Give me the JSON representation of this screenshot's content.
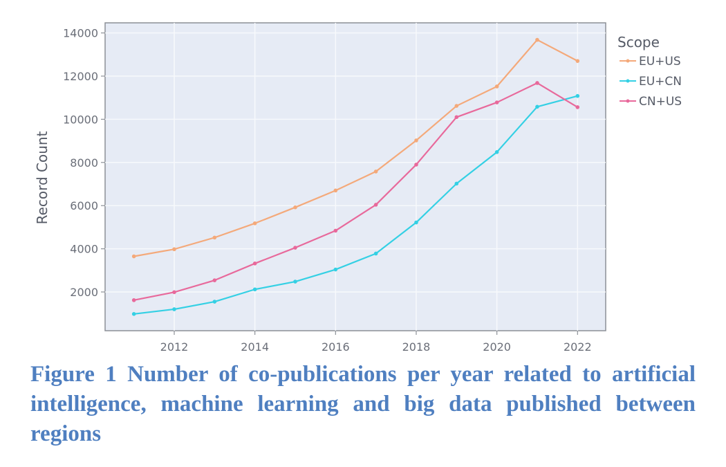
{
  "chart_data": {
    "type": "line",
    "title": "",
    "xlabel": "",
    "ylabel": "Record Count",
    "x": [
      2011,
      2012,
      2013,
      2014,
      2015,
      2016,
      2017,
      2018,
      2019,
      2020,
      2021,
      2022
    ],
    "xticks": [
      2012,
      2014,
      2016,
      2018,
      2020,
      2022
    ],
    "yticks": [
      2000,
      4000,
      6000,
      8000,
      10000,
      12000,
      14000
    ],
    "xlim": [
      2010.6,
      2022.7
    ],
    "ylim": [
      200,
      14550
    ],
    "grid": true,
    "legend": {
      "title": "Scope",
      "position": "right-top"
    },
    "series": [
      {
        "name": "EU+US",
        "color": "#f4a97a",
        "values": [
          3650,
          3980,
          4520,
          5180,
          5920,
          6700,
          7580,
          9020,
          10620,
          11520,
          13680,
          12700
        ]
      },
      {
        "name": "EU+CN",
        "color": "#34d0e4",
        "values": [
          980,
          1200,
          1550,
          2120,
          2480,
          3040,
          3780,
          5220,
          7020,
          8480,
          10580,
          11080
        ]
      },
      {
        "name": "CN+US",
        "color": "#e8699b",
        "values": [
          1620,
          1990,
          2540,
          3320,
          4050,
          4840,
          6040,
          7900,
          10100,
          10780,
          11680,
          10560
        ]
      }
    ]
  },
  "caption": "Figure 1 Number of co-publications per year related to artificial intelligence, machine learning and big data published between regions"
}
